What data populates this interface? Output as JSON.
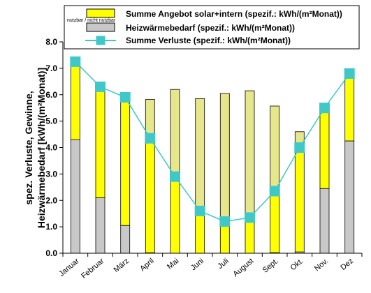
{
  "chart_data": {
    "type": "bar",
    "stacked": true,
    "categories": [
      "Januar",
      "Februar",
      "März",
      "April",
      "Mai",
      "Juni",
      "Juli",
      "August",
      "Sept.",
      "Okt.",
      "Nov.",
      "Dez"
    ],
    "ylabel_line1": "spez. Verluste, Gewinne,",
    "ylabel_line2": "Heizwärmebedarf [kWh/(m²Monat)]",
    "ylim": [
      0,
      8
    ],
    "yticks": [
      "0.0",
      "1.0",
      "2.0",
      "3.0",
      "4.0",
      "5.0",
      "6.0",
      "7.0",
      "8.0"
    ],
    "grid": false,
    "legend_position": "top-right",
    "legend_note": "nutzbar / nicht nutzbar",
    "series": [
      {
        "name": "Heizwärmebedarf (spezif.: kWh/(m²Monat))",
        "kind": "bar",
        "color": "#c8c8c8",
        "values": [
          4.3,
          2.1,
          1.05,
          0.02,
          0.0,
          0.0,
          0.0,
          0.0,
          0.02,
          0.05,
          2.45,
          4.25
        ]
      },
      {
        "name": "Summe Angebot solar+intern (spezif.: kWh/(m²Monat)) nutzbar",
        "kind": "bar",
        "color": "#ffff00",
        "values": [
          2.95,
          4.2,
          4.85,
          4.3,
          2.9,
          1.6,
          1.2,
          1.35,
          2.35,
          3.95,
          3.05,
          2.55
        ]
      },
      {
        "name": "Summe Angebot solar+intern (spezif.: kWh/(m²Monat)) nicht nutzbar",
        "kind": "bar",
        "color": "#e6e68a",
        "values": [
          0.0,
          0.0,
          0.0,
          1.5,
          3.3,
          4.25,
          4.85,
          4.8,
          3.2,
          0.6,
          0.0,
          0.0
        ]
      },
      {
        "name": "Summe Verluste  (spezif.: kWh/(m²Monat))",
        "kind": "line",
        "color": "#40c8c8",
        "values": [
          7.25,
          6.3,
          5.9,
          4.35,
          2.9,
          1.6,
          1.2,
          1.35,
          2.35,
          4.0,
          5.5,
          6.8
        ]
      }
    ],
    "legend": [
      {
        "label": "Summe Angebot solar+intern (spezif.: kWh/(m²Monat))",
        "swatch": "bar-yellow"
      },
      {
        "label": "Heizwärmebedarf (spezif.: kWh/(m²Monat))",
        "swatch": "bar-gray"
      },
      {
        "label": "Summe Verluste  (spezif.: kWh/(m²Monat))",
        "swatch": "line-marker"
      }
    ]
  },
  "colors": {
    "yellow": "#ffff00",
    "khaki": "#e6e68a",
    "gray": "#c8c8c8",
    "line": "#40c8c8",
    "marker": "#40c8c8"
  }
}
